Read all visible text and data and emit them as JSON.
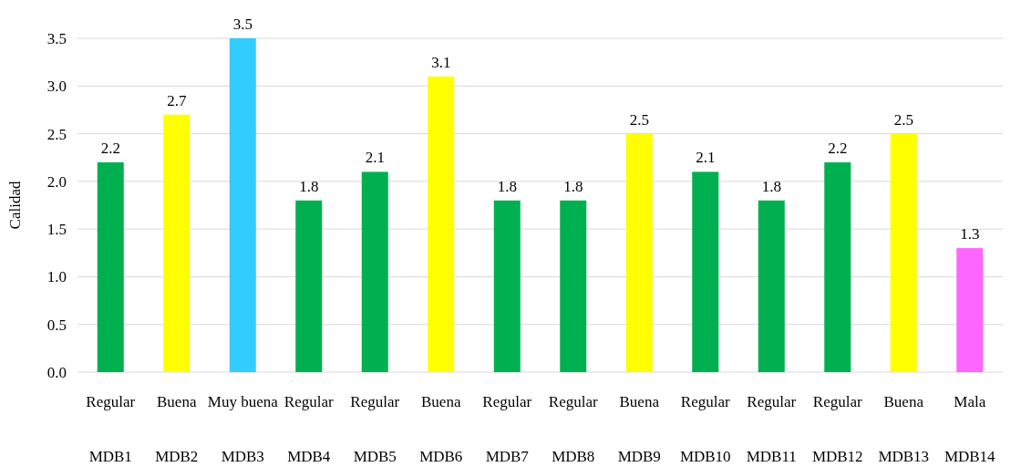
{
  "chart_data": {
    "type": "bar",
    "ylabel": "Calidad",
    "categories": [
      "Regular\nMDB1",
      "Buena\nMDB2",
      "Muy buena\nMDB3",
      "Regular\nMDB4",
      "Regular\nMDB5",
      "Buena\nMDB6",
      "Regular\nMDB7",
      "Regular\nMDB8",
      "Buena\nMDB9",
      "Regular\nMDB10",
      "Regular\nMDB11",
      "Regular\nMDB12",
      "Buena\nMDB13",
      "Mala\nMDB14"
    ],
    "values": [
      2.2,
      2.7,
      3.5,
      1.8,
      2.1,
      3.1,
      1.8,
      1.8,
      2.5,
      2.1,
      1.8,
      2.2,
      2.5,
      1.3
    ],
    "colors": [
      "#00b050",
      "#ffff00",
      "#33ccff",
      "#00b050",
      "#00b050",
      "#ffff00",
      "#00b050",
      "#00b050",
      "#ffff00",
      "#00b050",
      "#00b050",
      "#00b050",
      "#ffff00",
      "#ff66ff"
    ],
    "ylim": [
      0,
      3.5
    ],
    "yticks": [
      {
        "value": 0,
        "label": "0.0"
      },
      {
        "value": 0.5,
        "label": "0.5"
      },
      {
        "value": 1,
        "label": "1.0"
      },
      {
        "value": 1.5,
        "label": "1.5"
      },
      {
        "value": 2,
        "label": "2.0"
      },
      {
        "value": 2.5,
        "label": "2.5"
      },
      {
        "value": 3,
        "label": "3.0"
      },
      {
        "value": 3.5,
        "label": "3.5"
      }
    ],
    "grid": "y",
    "data_labels": true
  }
}
